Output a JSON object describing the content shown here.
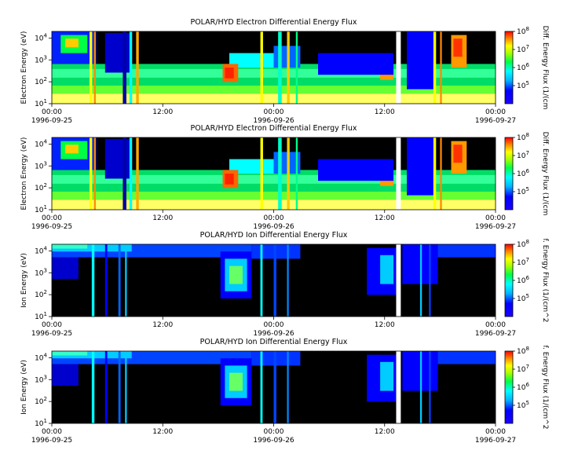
{
  "chart_data": [
    {
      "type": "heatmap",
      "title": "POLAR/HYD  Electron Differential Energy Flux",
      "ylabel": "Electron Energy (eV)",
      "colorbar_label": "Diff. Energy Flux (1/(cm",
      "y_scale": "log",
      "ylim": [
        10,
        20000
      ],
      "xlim": [
        "1996-09-25 00:00",
        "1996-09-27 00:00"
      ],
      "x_ticks": [
        {
          "time": "00:00",
          "date": "1996-09-25"
        },
        {
          "time": "12:00",
          "date": ""
        },
        {
          "time": "00:00",
          "date": "1996-09-26"
        },
        {
          "time": "12:00",
          "date": ""
        },
        {
          "time": "00:00",
          "date": "1996-09-27"
        }
      ],
      "y_ticks": [
        {
          "base": "10",
          "exp": "1"
        },
        {
          "base": "10",
          "exp": "2"
        },
        {
          "base": "10",
          "exp": "3"
        },
        {
          "base": "10",
          "exp": "4"
        }
      ],
      "colorbar_scale": "log",
      "colorbar_range": [
        10000,
        100000000
      ],
      "colorbar_ticks": [
        {
          "base": "10",
          "exp": "5"
        },
        {
          "base": "10",
          "exp": "6"
        },
        {
          "base": "10",
          "exp": "7"
        },
        {
          "base": "10",
          "exp": "8"
        }
      ],
      "data_gap": [
        "1996-09-26 13:15",
        "1996-09-26 13:45"
      ]
    },
    {
      "type": "heatmap",
      "title": "POLAR/HYD  Electron Differential Energy Flux",
      "ylabel": "Electron Energy (eV)",
      "colorbar_label": "Diff. Energy Flux (1/(cm",
      "y_scale": "log",
      "ylim": [
        10,
        20000
      ],
      "xlim": [
        "1996-09-25 00:00",
        "1996-09-27 00:00"
      ],
      "x_ticks": [
        {
          "time": "00:00",
          "date": "1996-09-25"
        },
        {
          "time": "12:00",
          "date": ""
        },
        {
          "time": "00:00",
          "date": "1996-09-26"
        },
        {
          "time": "12:00",
          "date": ""
        },
        {
          "time": "00:00",
          "date": "1996-09-27"
        }
      ],
      "y_ticks": [
        {
          "base": "10",
          "exp": "1"
        },
        {
          "base": "10",
          "exp": "2"
        },
        {
          "base": "10",
          "exp": "3"
        },
        {
          "base": "10",
          "exp": "4"
        }
      ],
      "colorbar_scale": "log",
      "colorbar_range": [
        10000,
        100000000
      ],
      "colorbar_ticks": [
        {
          "base": "10",
          "exp": "5"
        },
        {
          "base": "10",
          "exp": "6"
        },
        {
          "base": "10",
          "exp": "7"
        },
        {
          "base": "10",
          "exp": "8"
        }
      ],
      "data_gap": [
        "1996-09-26 13:15",
        "1996-09-26 13:45"
      ]
    },
    {
      "type": "heatmap",
      "title": "POLAR/HYD  Ion Differential Energy Flux",
      "ylabel": "Ion Energy (eV)",
      "colorbar_label": "f. Energy Flux (1/(cm^2",
      "y_scale": "log",
      "ylim": [
        10,
        20000
      ],
      "xlim": [
        "1996-09-25 00:00",
        "1996-09-27 00:00"
      ],
      "x_ticks": [
        {
          "time": "00:00",
          "date": "1996-09-25"
        },
        {
          "time": "12:00",
          "date": ""
        },
        {
          "time": "00:00",
          "date": "1996-09-26"
        },
        {
          "time": "12:00",
          "date": ""
        },
        {
          "time": "00:00",
          "date": "1996-09-27"
        }
      ],
      "y_ticks": [
        {
          "base": "10",
          "exp": "1"
        },
        {
          "base": "10",
          "exp": "2"
        },
        {
          "base": "10",
          "exp": "3"
        },
        {
          "base": "10",
          "exp": "4"
        }
      ],
      "colorbar_scale": "log",
      "colorbar_range": [
        10000,
        100000000
      ],
      "colorbar_ticks": [
        {
          "base": "10",
          "exp": "5"
        },
        {
          "base": "10",
          "exp": "6"
        },
        {
          "base": "10",
          "exp": "7"
        },
        {
          "base": "10",
          "exp": "8"
        }
      ],
      "data_gap": [
        "1996-09-26 13:15",
        "1996-09-26 13:45"
      ]
    },
    {
      "type": "heatmap",
      "title": "POLAR/HYD  Ion Differential Energy Flux",
      "ylabel": "Ion Energy (eV)",
      "colorbar_label": "f. Energy Flux (1/(cm^2",
      "y_scale": "log",
      "ylim": [
        10,
        20000
      ],
      "xlim": [
        "1996-09-25 00:00",
        "1996-09-27 00:00"
      ],
      "x_ticks": [
        {
          "time": "00:00",
          "date": "1996-09-25"
        },
        {
          "time": "12:00",
          "date": ""
        },
        {
          "time": "00:00",
          "date": "1996-09-26"
        },
        {
          "time": "12:00",
          "date": ""
        },
        {
          "time": "00:00",
          "date": "1996-09-27"
        }
      ],
      "y_ticks": [
        {
          "base": "10",
          "exp": "1"
        },
        {
          "base": "10",
          "exp": "2"
        },
        {
          "base": "10",
          "exp": "3"
        },
        {
          "base": "10",
          "exp": "4"
        }
      ],
      "colorbar_scale": "log",
      "colorbar_range": [
        10000,
        100000000
      ],
      "colorbar_ticks": [
        {
          "base": "10",
          "exp": "5"
        },
        {
          "base": "10",
          "exp": "6"
        },
        {
          "base": "10",
          "exp": "7"
        },
        {
          "base": "10",
          "exp": "8"
        }
      ],
      "data_gap": [
        "1996-09-26 13:15",
        "1996-09-26 13:45"
      ]
    }
  ]
}
